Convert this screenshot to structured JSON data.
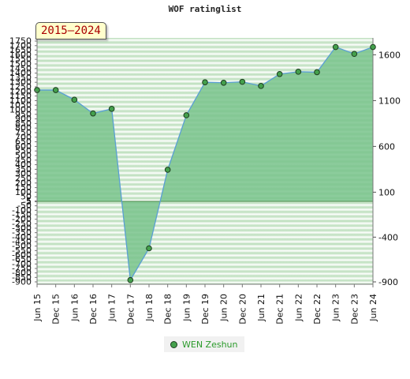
{
  "title": "WOF ratinglist",
  "badge": "2015–2024",
  "chart_data": {
    "type": "area",
    "x": [
      "Jun 15",
      "Dec 15",
      "Jun 16",
      "Dec 16",
      "Jun 17",
      "Dec 17",
      "Jun 18",
      "Dec 18",
      "Jun 19",
      "Dec 19",
      "Jun 20",
      "Dec 20",
      "Jun 21",
      "Dec 21",
      "Jun 22",
      "Dec 22",
      "Jun 23",
      "Dec 23",
      "Jun 24"
    ],
    "series": [
      {
        "name": "WEN Zeshun",
        "values": [
          1215,
          1215,
          1110,
          960,
          1010,
          -880,
          -525,
          345,
          940,
          1300,
          1295,
          1305,
          1260,
          1390,
          1415,
          1410,
          1685,
          1610,
          1685
        ]
      }
    ],
    "left_ticks": [
      1750,
      1700,
      1650,
      1600,
      1550,
      1500,
      1450,
      1400,
      1350,
      1300,
      1250,
      1200,
      1150,
      1100,
      1050,
      1000,
      950,
      900,
      850,
      800,
      750,
      700,
      650,
      600,
      550,
      500,
      450,
      400,
      350,
      300,
      250,
      200,
      150,
      100,
      50,
      5,
      -5,
      -50,
      -100,
      -150,
      -200,
      -250,
      -300,
      -350,
      -400,
      -450,
      -500,
      -550,
      -600,
      -650,
      -700,
      -750,
      -800,
      -850,
      -900
    ],
    "right_ticks": [
      1600,
      1100,
      600,
      100,
      -400,
      -900
    ],
    "ylim": [
      -900,
      1750
    ],
    "grid": true,
    "legend_position": "bottom",
    "colors": {
      "fill": "#79c38c",
      "line": "#5a9fd4",
      "marker": "#44a04c",
      "stripe_dark": "#b6dcb6",
      "stripe_light": "#ffffff"
    }
  }
}
